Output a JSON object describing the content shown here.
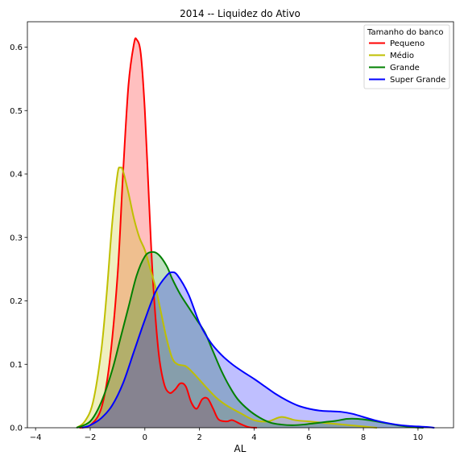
{
  "chart_data": {
    "type": "area",
    "title": "2014 -- Liquidez do Ativo",
    "xlabel": "AL",
    "ylabel": "",
    "xlim": [
      -4.3,
      11.3
    ],
    "ylim": [
      0,
      0.64
    ],
    "xticks": [
      -4,
      -2,
      0,
      2,
      4,
      6,
      8,
      10
    ],
    "yticks": [
      0.0,
      0.1,
      0.2,
      0.3,
      0.4,
      0.5,
      0.6
    ],
    "grid": false,
    "legend": {
      "title": "Tamanho do banco",
      "placement": "top-right"
    },
    "series": [
      {
        "name": "Pequeno",
        "color": "#ff0000",
        "fill": "#ff0000",
        "fill_opacity": 0.25,
        "x": [
          -2.4,
          -2.0,
          -1.6,
          -1.3,
          -1.0,
          -0.8,
          -0.6,
          -0.4,
          -0.3,
          -0.15,
          0.0,
          0.15,
          0.3,
          0.5,
          0.7,
          0.9,
          1.1,
          1.3,
          1.5,
          1.7,
          1.9,
          2.1,
          2.3,
          2.5,
          2.7,
          3.0,
          3.2,
          3.5,
          3.8,
          4.1
        ],
        "values": [
          0.0,
          0.004,
          0.03,
          0.1,
          0.24,
          0.4,
          0.54,
          0.605,
          0.612,
          0.59,
          0.5,
          0.36,
          0.23,
          0.12,
          0.07,
          0.055,
          0.06,
          0.07,
          0.065,
          0.04,
          0.03,
          0.045,
          0.046,
          0.03,
          0.013,
          0.01,
          0.012,
          0.006,
          0.001,
          0.0
        ]
      },
      {
        "name": "Médio",
        "color": "#bfbf00",
        "fill": "#bfbf00",
        "fill_opacity": 0.25,
        "x": [
          -2.5,
          -2.2,
          -1.9,
          -1.6,
          -1.4,
          -1.2,
          -1.0,
          -0.9,
          -0.8,
          -0.6,
          -0.4,
          -0.2,
          0.0,
          0.2,
          0.4,
          0.6,
          0.8,
          1.0,
          1.2,
          1.5,
          1.8,
          2.2,
          2.6,
          3.0,
          3.5,
          4.0,
          4.5,
          5.0,
          5.5,
          6.0,
          6.5,
          7.0,
          7.5,
          8.0,
          8.5
        ],
        "values": [
          0.0,
          0.01,
          0.04,
          0.12,
          0.21,
          0.32,
          0.4,
          0.41,
          0.405,
          0.37,
          0.33,
          0.3,
          0.28,
          0.25,
          0.22,
          0.18,
          0.14,
          0.11,
          0.1,
          0.097,
          0.085,
          0.066,
          0.048,
          0.035,
          0.023,
          0.012,
          0.01,
          0.017,
          0.012,
          0.01,
          0.008,
          0.006,
          0.004,
          0.002,
          0.0
        ]
      },
      {
        "name": "Grande",
        "color": "#008000",
        "fill": "#008000",
        "fill_opacity": 0.25,
        "x": [
          -2.5,
          -2.0,
          -1.6,
          -1.2,
          -0.9,
          -0.6,
          -0.3,
          0.0,
          0.25,
          0.5,
          0.8,
          1.0,
          1.3,
          1.6,
          1.9,
          2.2,
          2.5,
          2.8,
          3.1,
          3.4,
          3.8,
          4.2,
          4.6,
          5.0,
          5.4,
          5.8,
          6.2,
          6.6,
          7.0,
          7.4,
          7.8,
          8.2,
          8.6,
          9.0,
          9.4,
          9.8,
          10.2
        ],
        "values": [
          0.0,
          0.01,
          0.04,
          0.09,
          0.14,
          0.19,
          0.24,
          0.27,
          0.277,
          0.273,
          0.255,
          0.235,
          0.21,
          0.19,
          0.17,
          0.15,
          0.12,
          0.09,
          0.065,
          0.045,
          0.028,
          0.016,
          0.008,
          0.005,
          0.004,
          0.005,
          0.007,
          0.009,
          0.011,
          0.014,
          0.014,
          0.012,
          0.009,
          0.006,
          0.003,
          0.001,
          0.0
        ]
      },
      {
        "name": "Super Grande",
        "color": "#0000ff",
        "fill": "#0000ff",
        "fill_opacity": 0.25,
        "x": [
          -2.3,
          -2.0,
          -1.6,
          -1.2,
          -0.8,
          -0.4,
          0.0,
          0.4,
          0.8,
          1.0,
          1.2,
          1.6,
          2.0,
          2.4,
          2.8,
          3.2,
          3.6,
          4.0,
          4.4,
          4.8,
          5.2,
          5.6,
          6.0,
          6.4,
          6.8,
          7.2,
          7.6,
          8.0,
          8.4,
          8.8,
          9.2,
          9.6,
          10.0,
          10.4,
          10.6
        ],
        "values": [
          0.0,
          0.004,
          0.015,
          0.035,
          0.07,
          0.12,
          0.17,
          0.215,
          0.24,
          0.245,
          0.24,
          0.21,
          0.165,
          0.135,
          0.115,
          0.1,
          0.088,
          0.077,
          0.065,
          0.053,
          0.043,
          0.035,
          0.03,
          0.027,
          0.026,
          0.025,
          0.022,
          0.017,
          0.012,
          0.008,
          0.005,
          0.003,
          0.002,
          0.001,
          0.0
        ]
      }
    ]
  }
}
